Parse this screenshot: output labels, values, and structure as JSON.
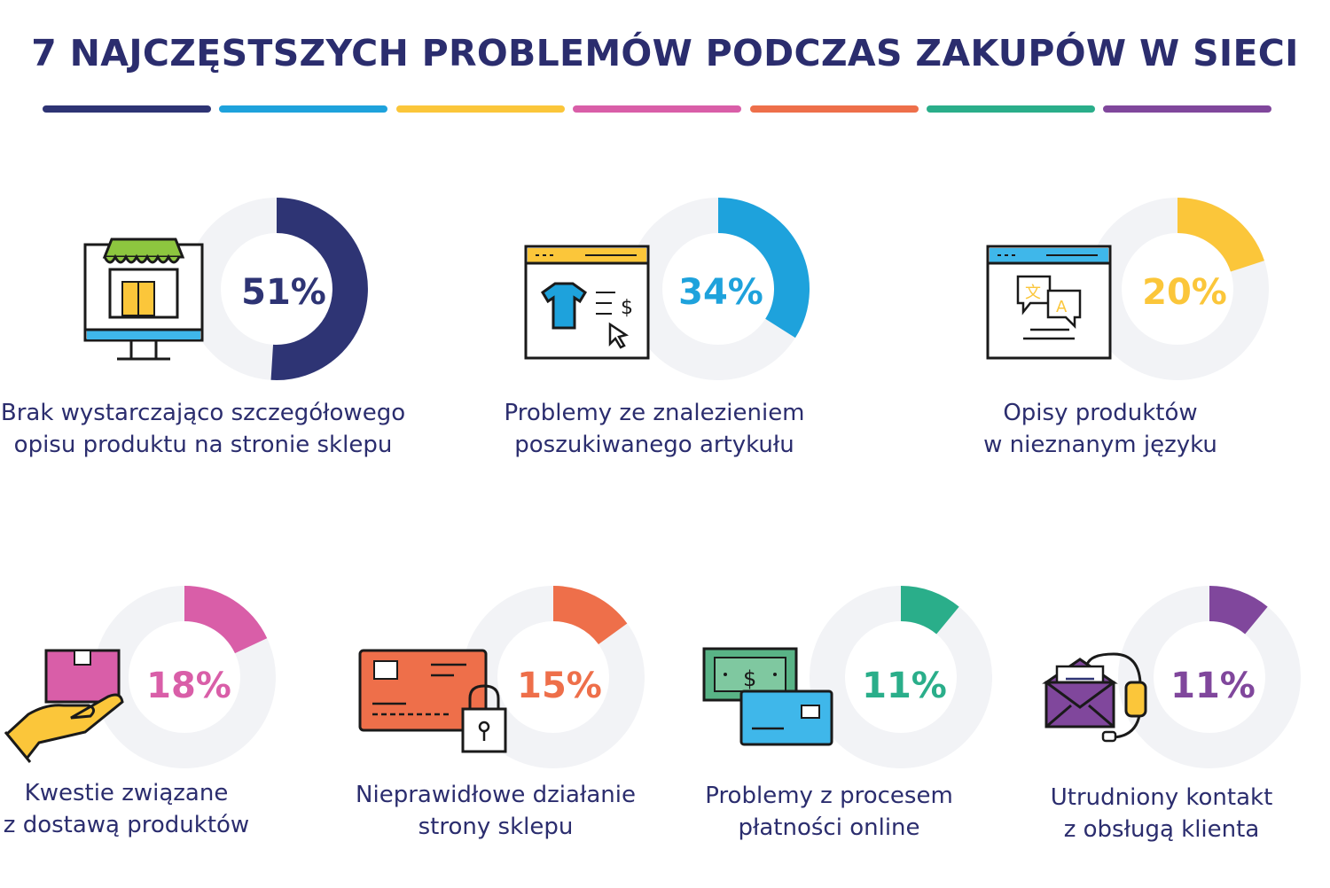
{
  "title": "7 NAJCZĘSTSZYCH PROBLEMÓW PODCZAS ZAKUPÓW W SIECI",
  "colors": [
    "#2e3474",
    "#1ea2dc",
    "#fbc63a",
    "#d95ea8",
    "#ee6f4a",
    "#2aae8a",
    "#80479c"
  ],
  "chart_data": {
    "type": "pie",
    "title": "7 NAJCZĘSTSZYCH PROBLEMÓW PODCZAS ZAKUPÓW W SIECI",
    "categories": [
      "Brak wystarczająco szczegółowego opisu produktu na stronie sklepu",
      "Problemy ze znalezieniem poszukiwanego artykułu",
      "Opisy produktów w nieznanym języku",
      "Kwestie związane z dostawą produktów",
      "Nieprawidłowe działanie strony sklepu",
      "Problemy z procesem płatności online",
      "Utrudniony kontakt z obsługą klienta"
    ],
    "values": [
      51,
      34,
      20,
      18,
      15,
      11,
      11
    ],
    "unit": "%"
  },
  "items": [
    {
      "pct": "51%",
      "line1": "Brak wystarczająco szczegółowego",
      "line2": "opisu produktu na stronie sklepu",
      "color": "#2e3474",
      "icon": "storefront-icon"
    },
    {
      "pct": "34%",
      "line1": "Problemy ze znalezieniem",
      "line2": "poszukiwanego artykułu",
      "color": "#1ea2dc",
      "icon": "product-search-icon"
    },
    {
      "pct": "20%",
      "line1": "Opisy produktów",
      "line2": "w nieznanym języku",
      "color": "#fbc63a",
      "icon": "translation-icon"
    },
    {
      "pct": "18%",
      "line1": "Kwestie związane",
      "line2": "z dostawą produktów",
      "color": "#d95ea8",
      "icon": "delivery-box-icon"
    },
    {
      "pct": "15%",
      "line1": "Nieprawidłowe działanie",
      "line2": "strony sklepu",
      "color": "#ee6f4a",
      "icon": "locked-card-icon"
    },
    {
      "pct": "11%",
      "line1": "Problemy z procesem",
      "line2": "płatności online",
      "color": "#2aae8a",
      "icon": "payment-icon"
    },
    {
      "pct": "11%",
      "line1": "Utrudniony kontakt",
      "line2": "z obsługą klienta",
      "color": "#80479c",
      "icon": "customer-service-icon"
    }
  ]
}
